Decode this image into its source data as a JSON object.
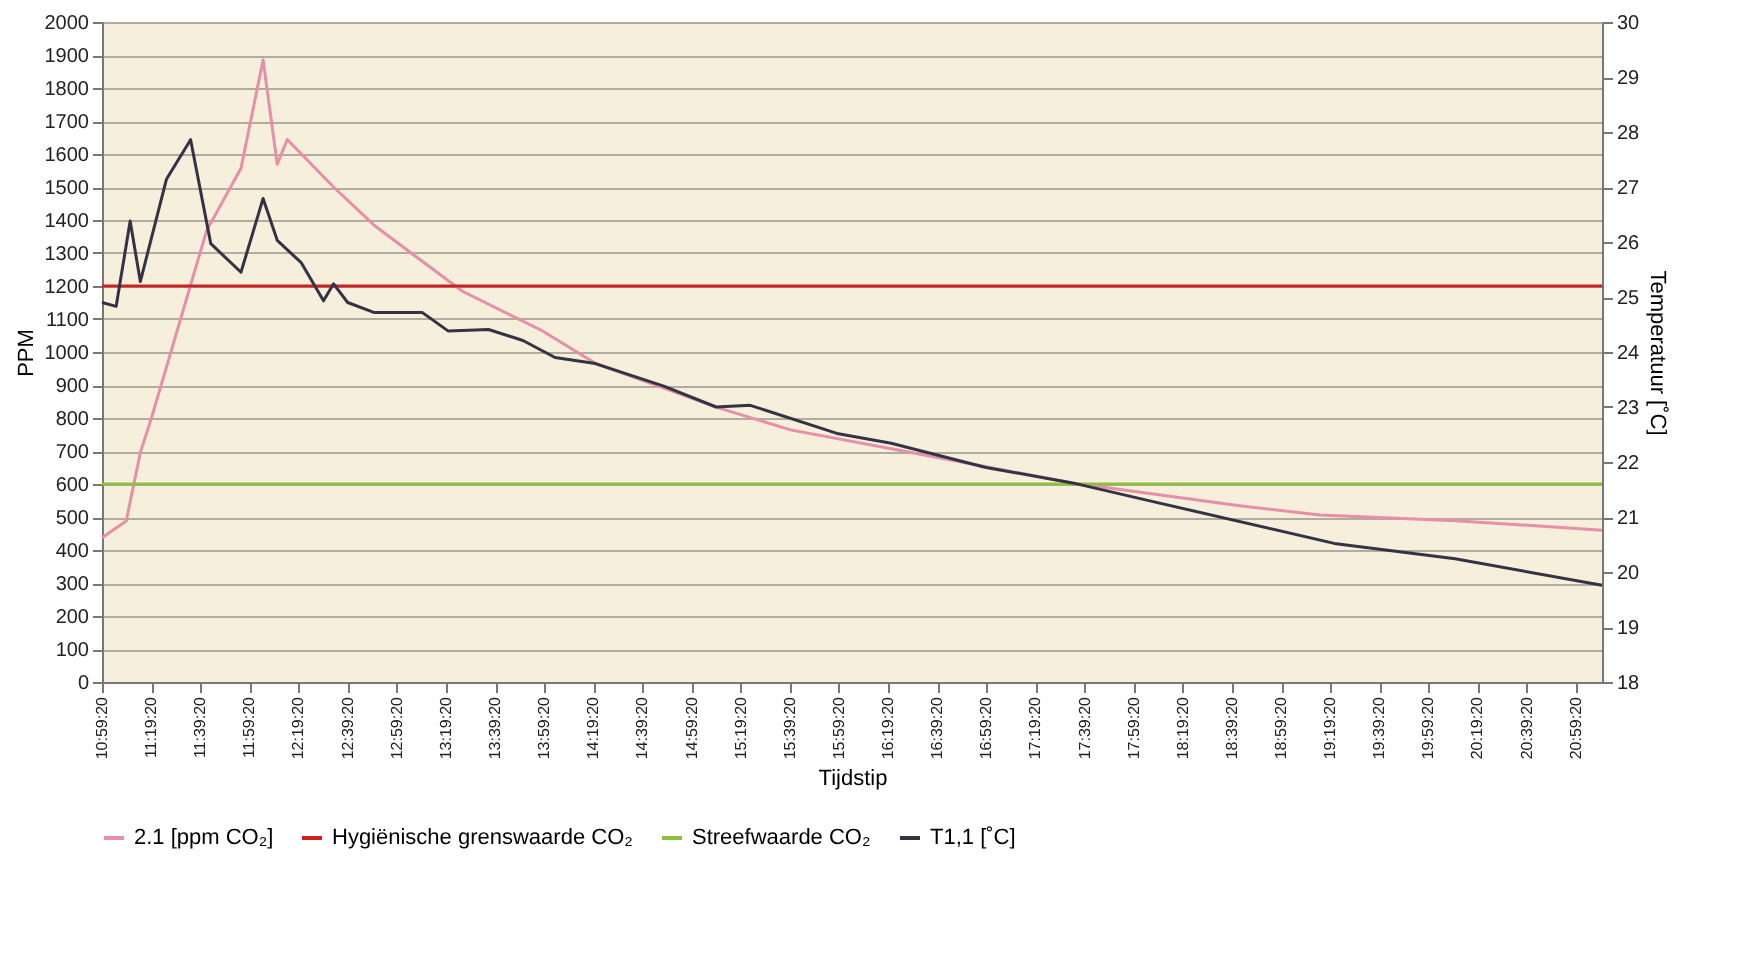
{
  "chart_data": {
    "type": "line",
    "xlabel": "Tijdstip",
    "ylabel": "PPM",
    "y2label": "Temperatuur [˚C]",
    "xlim": [
      10.9889,
      21.167
    ],
    "xticks": [
      {
        "value": 10.9889,
        "label": "10:59:20"
      },
      {
        "value": 11.3222,
        "label": "11:19:20"
      },
      {
        "value": 11.6556,
        "label": "11:39:20"
      },
      {
        "value": 11.9889,
        "label": "11:59:20"
      },
      {
        "value": 12.3222,
        "label": "12:19:20"
      },
      {
        "value": 12.6556,
        "label": "12:39:20"
      },
      {
        "value": 12.9889,
        "label": "12:59:20"
      },
      {
        "value": 13.3222,
        "label": "13:19:20"
      },
      {
        "value": 13.6556,
        "label": "13:39:20"
      },
      {
        "value": 13.9889,
        "label": "13:59:20"
      },
      {
        "value": 14.3222,
        "label": "14:19:20"
      },
      {
        "value": 14.6556,
        "label": "14:39:20"
      },
      {
        "value": 14.9889,
        "label": "14:59:20"
      },
      {
        "value": 15.3222,
        "label": "15:19:20"
      },
      {
        "value": 15.6556,
        "label": "15:39:20"
      },
      {
        "value": 15.9889,
        "label": "15:59:20"
      },
      {
        "value": 16.3222,
        "label": "16:19:20"
      },
      {
        "value": 16.6556,
        "label": "16:39:20"
      },
      {
        "value": 16.9889,
        "label": "16:59:20"
      },
      {
        "value": 17.3222,
        "label": "17:19:20"
      },
      {
        "value": 17.6556,
        "label": "17:39:20"
      },
      {
        "value": 17.9889,
        "label": "17:59:20"
      },
      {
        "value": 18.3222,
        "label": "18:19:20"
      },
      {
        "value": 18.6556,
        "label": "18:39:20"
      },
      {
        "value": 18.9889,
        "label": "18:59:20"
      },
      {
        "value": 19.3222,
        "label": "19:19:20"
      },
      {
        "value": 19.6556,
        "label": "19:39:20"
      },
      {
        "value": 19.9889,
        "label": "19:59:20"
      },
      {
        "value": 20.3222,
        "label": "20:19:20"
      },
      {
        "value": 20.6556,
        "label": "20:39:20"
      },
      {
        "value": 20.9889,
        "label": "20:59:20"
      }
    ],
    "ylim": [
      0,
      2000
    ],
    "yticks": [
      0,
      100,
      200,
      300,
      400,
      500,
      600,
      700,
      800,
      900,
      1000,
      1100,
      1200,
      1300,
      1400,
      1500,
      1600,
      1700,
      1800,
      1900,
      2000
    ],
    "y2lim": [
      18,
      30
    ],
    "y2ticks": [
      18,
      19,
      20,
      21,
      22,
      23,
      24,
      25,
      26,
      27,
      28,
      29,
      30
    ],
    "grid": "y",
    "legend": "bottom",
    "marker": "none",
    "line_style": "solid",
    "series": [
      {
        "name": "2.1 [ppm CO₂]",
        "color": "#e58fa8",
        "x": [
          10.989,
          11.153,
          11.249,
          11.331,
          11.699,
          11.932,
          12.082,
          12.178,
          12.246,
          12.56,
          12.833,
          13.107,
          13.435,
          13.981,
          14.336,
          14.801,
          15.156,
          15.661,
          16.344,
          17.574,
          18.708,
          19.254,
          20.17,
          21.167
        ],
        "values": [
          437,
          488,
          695,
          810,
          1368,
          1557,
          1885,
          1569,
          1644,
          1500,
          1385,
          1293,
          1184,
          1063,
          966,
          891,
          833,
          764,
          707,
          603,
          534,
          506,
          489,
          460
        ]
      },
      {
        "name": "Hygiënische grenswaarde CO₂",
        "color": "#cc2222",
        "x": [
          10.989,
          21.167
        ],
        "values": [
          1200,
          1200
        ]
      },
      {
        "name": "Streefwaarde CO₂",
        "color": "#8cbf3f",
        "x": [
          10.989,
          21.167
        ],
        "values": [
          600,
          600
        ]
      },
      {
        "name": "T1,1 [˚C]",
        "color": "#333344",
        "axis": "y2",
        "x": [
          10.989,
          11.085,
          11.18,
          11.249,
          11.426,
          11.59,
          11.727,
          11.932,
          12.082,
          12.178,
          12.342,
          12.492,
          12.56,
          12.656,
          12.833,
          13.161,
          13.339,
          13.612,
          13.845,
          14.063,
          14.336,
          14.801,
          15.156,
          15.388,
          15.976,
          16.344,
          16.987,
          17.574,
          18.121,
          19.35,
          20.17,
          21.167
        ],
        "values": [
          24.9,
          24.83,
          26.38,
          25.28,
          27.14,
          27.86,
          25.97,
          25.45,
          26.79,
          26.03,
          25.62,
          24.93,
          25.24,
          24.9,
          24.72,
          24.72,
          24.38,
          24.41,
          24.21,
          23.9,
          23.79,
          23.38,
          23.0,
          23.03,
          22.52,
          22.34,
          21.9,
          21.62,
          21.28,
          20.52,
          20.24,
          19.76
        ]
      }
    ]
  }
}
